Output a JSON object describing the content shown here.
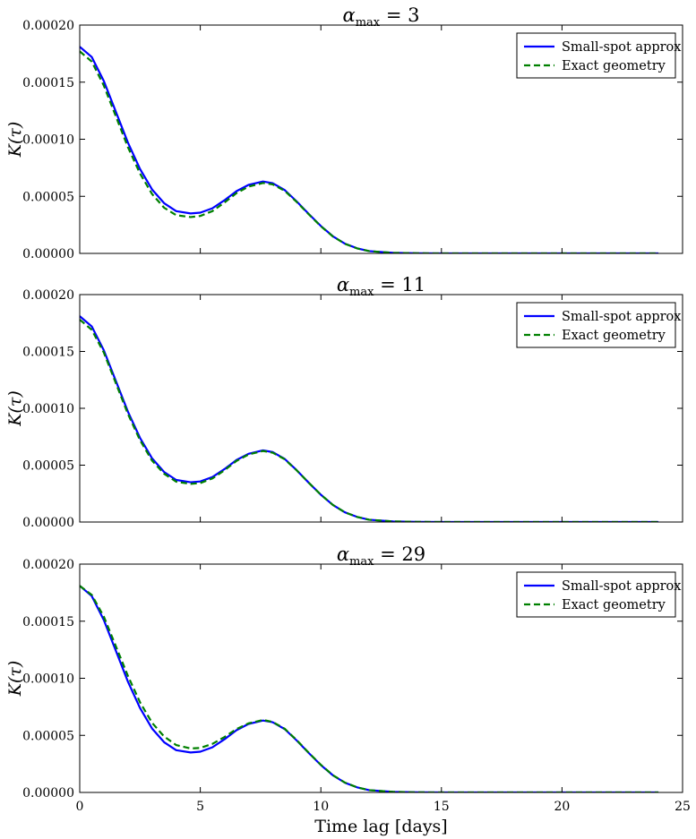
{
  "chart_data": [
    {
      "type": "line",
      "title_symbol": "α",
      "title_sub": "max",
      "title_rest": " = 3",
      "xlabel": "",
      "ylabel": "K(τ)",
      "xlim": [
        0,
        25
      ],
      "ylim": [
        0,
        0.0002
      ],
      "xticks": [
        0,
        5,
        10,
        15,
        20,
        25
      ],
      "yticks": [
        "0.00000",
        "0.00005",
        "0.00010",
        "0.00015",
        "0.00020"
      ],
      "show_xtick_labels": false,
      "legend_position": "top-right",
      "series": [
        {
          "name": "Small-spot approx",
          "color": "#0000ff",
          "dash": "solid",
          "x": [
            0,
            0.5,
            1,
            1.5,
            2,
            2.5,
            3,
            3.5,
            4,
            4.6,
            5,
            5.5,
            6,
            6.5,
            7,
            7.6,
            8,
            8.5,
            9,
            9.5,
            10,
            10.5,
            11,
            11.5,
            12,
            13,
            14,
            15,
            17,
            20,
            24
          ],
          "y": [
            0.000181,
            0.000172,
            0.000151,
            0.000124,
            9.7e-05,
            7.4e-05,
            5.6e-05,
            4.4e-05,
            3.7e-05,
            3.5e-05,
            3.57e-05,
            3.95e-05,
            4.65e-05,
            5.45e-05,
            6e-05,
            6.3e-05,
            6.15e-05,
            5.55e-05,
            4.55e-05,
            3.45e-05,
            2.4e-05,
            1.5e-05,
            8.5e-06,
            4.5e-06,
            2e-06,
            5e-07,
            1e-07,
            0,
            0,
            0,
            0
          ]
        },
        {
          "name": "Exact geometry",
          "color": "#008000",
          "dash": "dashed",
          "x": [
            0,
            0.5,
            1,
            1.5,
            2,
            2.5,
            3,
            3.5,
            4,
            4.6,
            5,
            5.5,
            6,
            6.5,
            7,
            7.6,
            8,
            8.5,
            9,
            9.5,
            10,
            10.5,
            11,
            11.5,
            12,
            13,
            14,
            15,
            17,
            20,
            24
          ],
          "y": [
            0.000177,
            0.000168,
            0.000147,
            0.00012,
            9.3e-05,
            7e-05,
            5.2e-05,
            4e-05,
            3.35e-05,
            3.18e-05,
            3.28e-05,
            3.7e-05,
            4.45e-05,
            5.28e-05,
            5.85e-05,
            6.17e-05,
            6.05e-05,
            5.48e-05,
            4.5e-05,
            3.42e-05,
            2.38e-05,
            1.48e-05,
            8.4e-06,
            4.4e-06,
            2e-06,
            5e-07,
            1e-07,
            0,
            0,
            0,
            0
          ]
        }
      ]
    },
    {
      "type": "line",
      "title_symbol": "α",
      "title_sub": "max",
      "title_rest": " = 11",
      "xlabel": "",
      "ylabel": "K(τ)",
      "xlim": [
        0,
        25
      ],
      "ylim": [
        0,
        0.0002
      ],
      "xticks": [
        0,
        5,
        10,
        15,
        20,
        25
      ],
      "yticks": [
        "0.00000",
        "0.00005",
        "0.00010",
        "0.00015",
        "0.00020"
      ],
      "show_xtick_labels": false,
      "legend_position": "top-right",
      "series": [
        {
          "name": "Small-spot approx",
          "color": "#0000ff",
          "dash": "solid",
          "x": [
            0,
            0.5,
            1,
            1.5,
            2,
            2.5,
            3,
            3.5,
            4,
            4.6,
            5,
            5.5,
            6,
            6.5,
            7,
            7.6,
            8,
            8.5,
            9,
            9.5,
            10,
            10.5,
            11,
            11.5,
            12,
            13,
            14,
            15,
            17,
            20,
            24
          ],
          "y": [
            0.000181,
            0.000172,
            0.000151,
            0.000124,
            9.7e-05,
            7.4e-05,
            5.6e-05,
            4.4e-05,
            3.7e-05,
            3.5e-05,
            3.57e-05,
            3.95e-05,
            4.65e-05,
            5.45e-05,
            6e-05,
            6.3e-05,
            6.15e-05,
            5.55e-05,
            4.55e-05,
            3.45e-05,
            2.4e-05,
            1.5e-05,
            8.5e-06,
            4.5e-06,
            2e-06,
            5e-07,
            1e-07,
            0,
            0,
            0,
            0
          ]
        },
        {
          "name": "Exact geometry",
          "color": "#008000",
          "dash": "dashed",
          "x": [
            0,
            0.5,
            1,
            1.5,
            2,
            2.5,
            3,
            3.5,
            4,
            4.6,
            5,
            5.5,
            6,
            6.5,
            7,
            7.6,
            8,
            8.5,
            9,
            9.5,
            10,
            10.5,
            11,
            11.5,
            12,
            13,
            14,
            15,
            17,
            20,
            24
          ],
          "y": [
            0.000178,
            0.000169,
            0.000149,
            0.000122,
            9.5e-05,
            7.2e-05,
            5.4e-05,
            4.25e-05,
            3.55e-05,
            3.35e-05,
            3.43e-05,
            3.83e-05,
            4.55e-05,
            5.37e-05,
            5.94e-05,
            6.25e-05,
            6.1e-05,
            5.52e-05,
            4.54e-05,
            3.45e-05,
            2.4e-05,
            1.5e-05,
            8.5e-06,
            4.5e-06,
            2e-06,
            5e-07,
            1e-07,
            0,
            0,
            0,
            0
          ]
        }
      ]
    },
    {
      "type": "line",
      "title_symbol": "α",
      "title_sub": "max",
      "title_rest": " = 29",
      "xlabel": "Time lag [days]",
      "ylabel": "K(τ)",
      "xlim": [
        0,
        25
      ],
      "ylim": [
        0,
        0.0002
      ],
      "xticks": [
        0,
        5,
        10,
        15,
        20,
        25
      ],
      "xtick_labels": [
        "0",
        "5",
        "10",
        "15",
        "20",
        "25"
      ],
      "yticks": [
        "0.00000",
        "0.00005",
        "0.00010",
        "0.00015",
        "0.00020"
      ],
      "show_xtick_labels": true,
      "legend_position": "top-right",
      "series": [
        {
          "name": "Small-spot approx",
          "color": "#0000ff",
          "dash": "solid",
          "x": [
            0,
            0.5,
            1,
            1.5,
            2,
            2.5,
            3,
            3.5,
            4,
            4.6,
            5,
            5.5,
            6,
            6.5,
            7,
            7.6,
            8,
            8.5,
            9,
            9.5,
            10,
            10.5,
            11,
            11.5,
            12,
            13,
            14,
            15,
            17,
            20,
            24
          ],
          "y": [
            0.000181,
            0.000172,
            0.000151,
            0.000124,
            9.7e-05,
            7.4e-05,
            5.6e-05,
            4.4e-05,
            3.7e-05,
            3.5e-05,
            3.57e-05,
            3.95e-05,
            4.65e-05,
            5.45e-05,
            6e-05,
            6.3e-05,
            6.15e-05,
            5.55e-05,
            4.55e-05,
            3.45e-05,
            2.4e-05,
            1.5e-05,
            8.5e-06,
            4.5e-06,
            2e-06,
            5e-07,
            1e-07,
            0,
            0,
            0,
            0
          ]
        },
        {
          "name": "Exact geometry",
          "color": "#008000",
          "dash": "dashed",
          "x": [
            0,
            0.5,
            1,
            1.5,
            2,
            2.5,
            3,
            3.5,
            4,
            4.6,
            5,
            5.5,
            6,
            6.5,
            7,
            7.6,
            8,
            8.5,
            9,
            9.5,
            10,
            10.5,
            11,
            11.5,
            12,
            13,
            14,
            15,
            17,
            20,
            24
          ],
          "y": [
            0.000181,
            0.000173,
            0.000154,
            0.000128,
            0.000102,
            7.9e-05,
            6.1e-05,
            4.9e-05,
            4.15e-05,
            3.85e-05,
            3.9e-05,
            4.25e-05,
            4.85e-05,
            5.55e-05,
            6.05e-05,
            6.35e-05,
            6.18e-05,
            5.58e-05,
            4.58e-05,
            3.47e-05,
            2.42e-05,
            1.51e-05,
            8.6e-06,
            4.5e-06,
            2e-06,
            5e-07,
            1e-07,
            0,
            0,
            0,
            0
          ]
        }
      ]
    }
  ]
}
